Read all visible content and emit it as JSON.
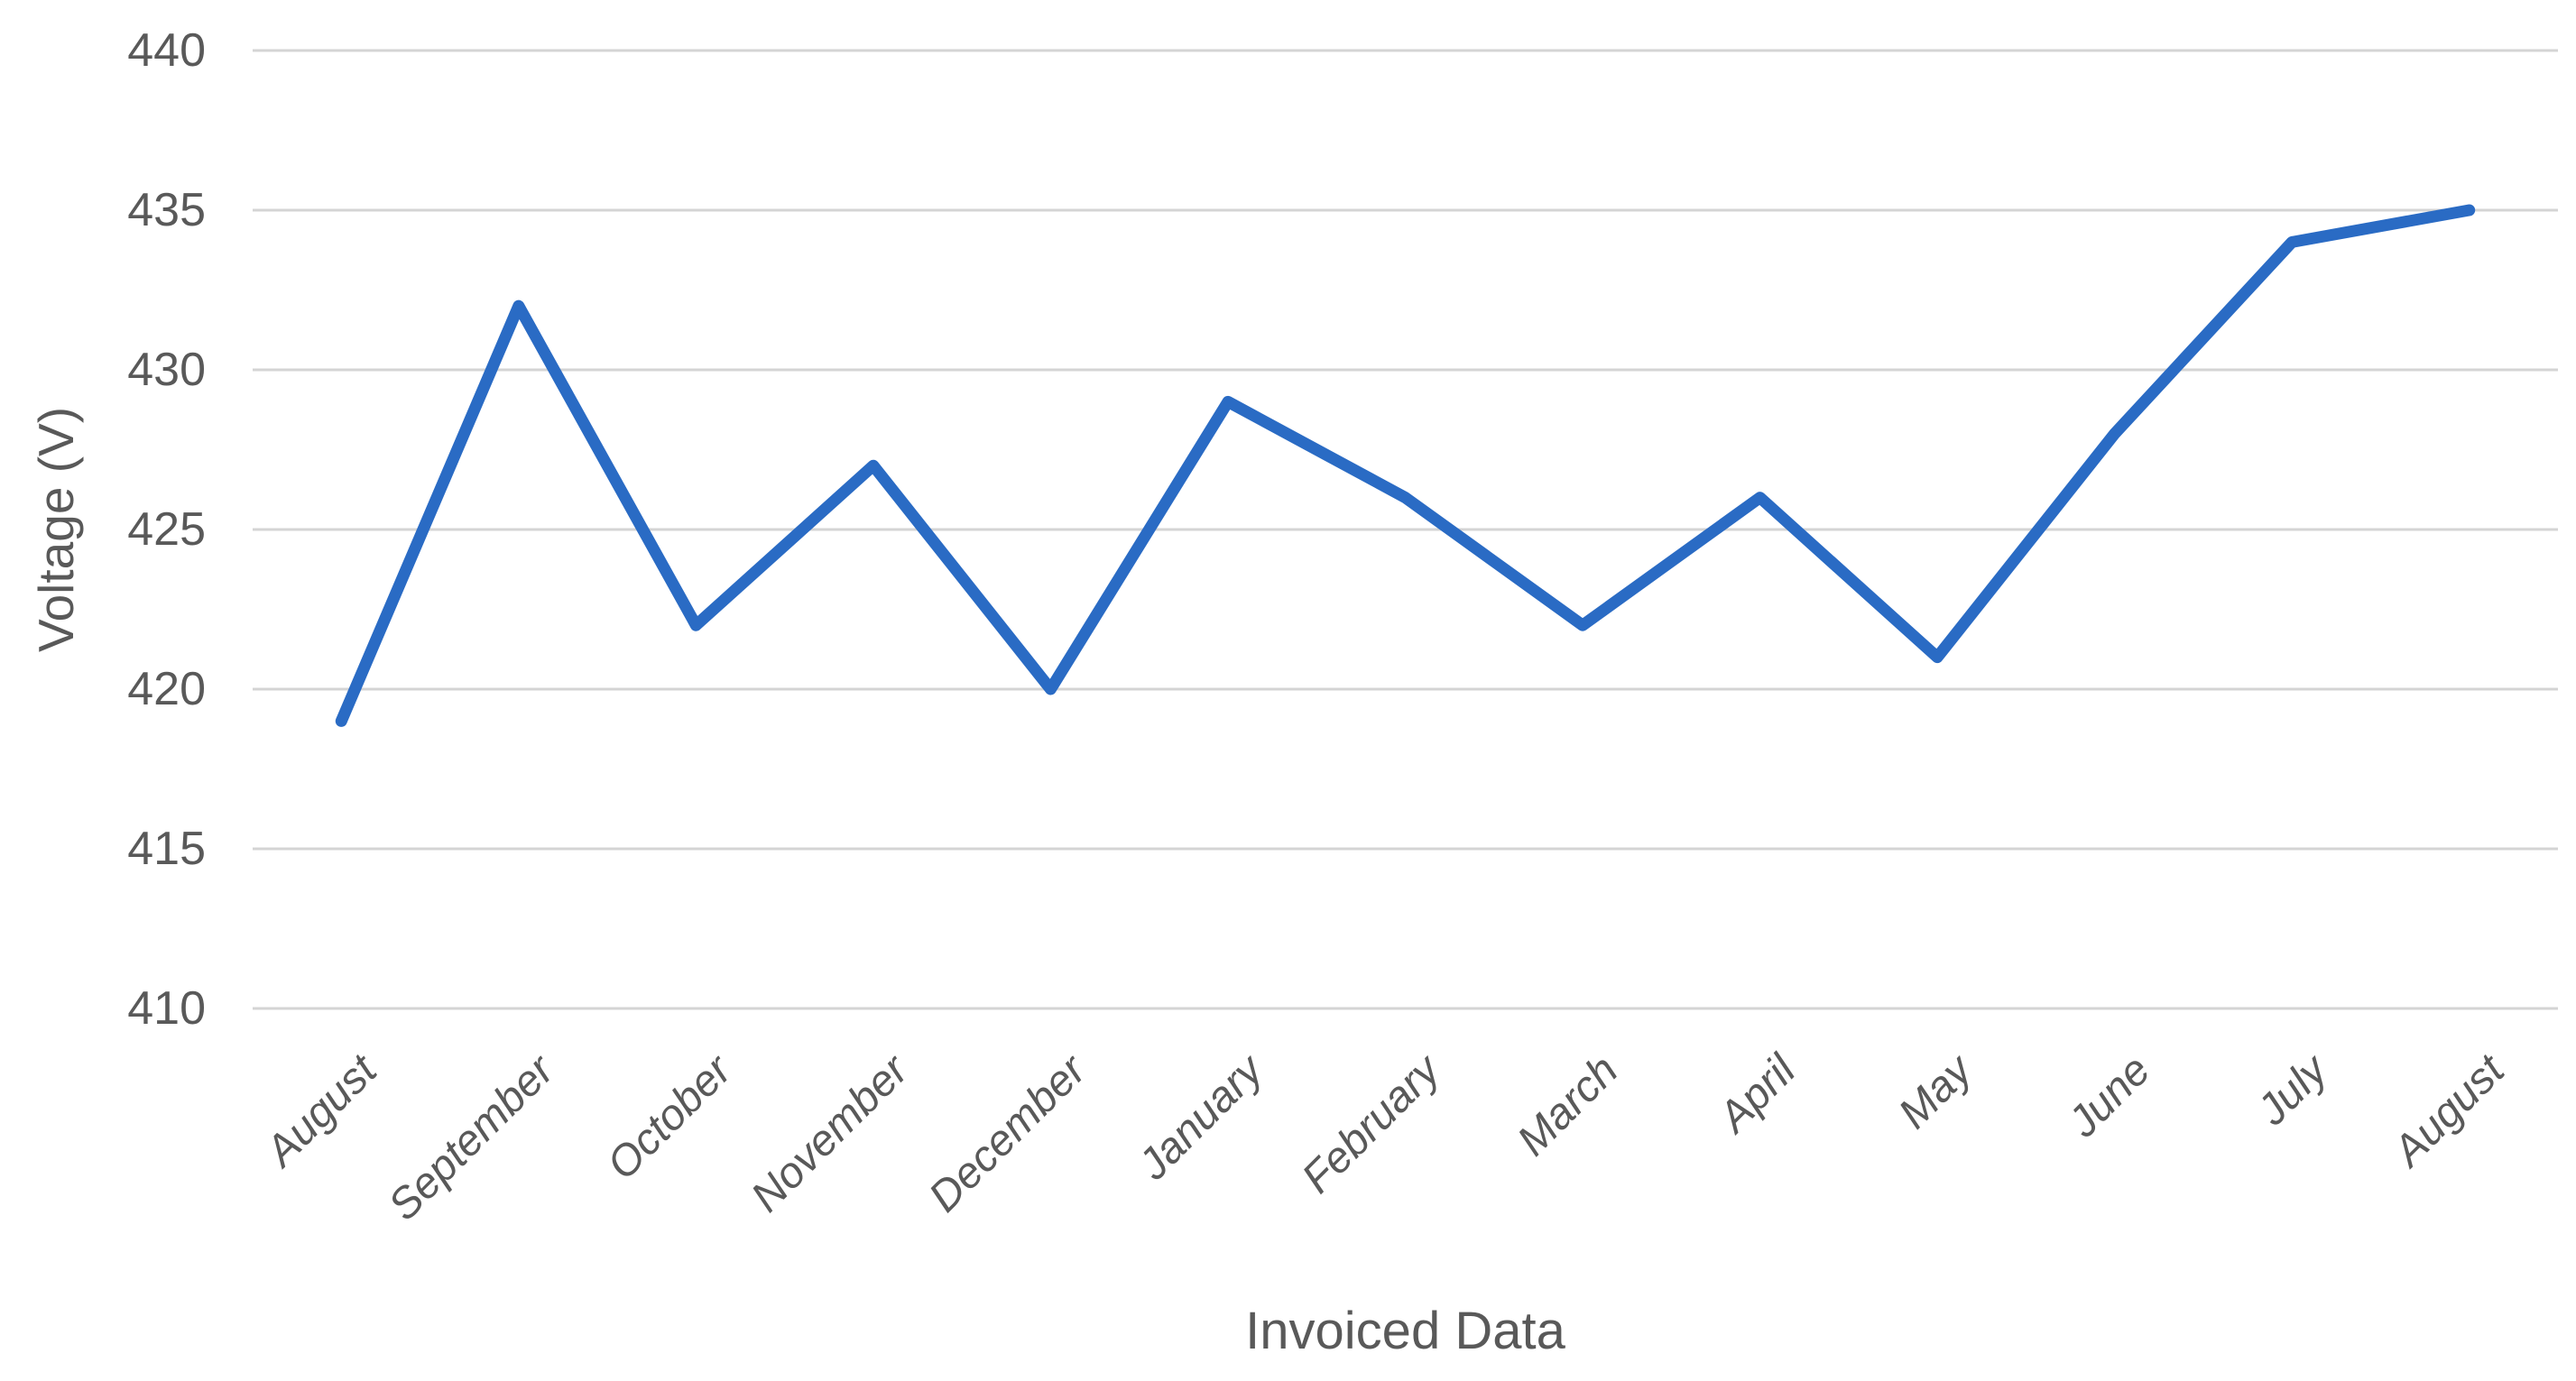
{
  "chart_data": {
    "type": "line",
    "categories": [
      "August",
      "September",
      "October",
      "November",
      "December",
      "January",
      "February",
      "March",
      "April",
      "May",
      "June",
      "July",
      "August"
    ],
    "values": [
      419,
      432,
      422,
      427,
      420,
      429,
      426,
      422,
      426,
      421,
      428,
      434,
      435
    ],
    "title": "",
    "xlabel": "Invoiced Data",
    "ylabel": "Voltage (V)",
    "ylim": [
      410,
      440
    ],
    "yticks": [
      440,
      435,
      430,
      425,
      420,
      415,
      410
    ],
    "grid": "horizontal-major-only",
    "legend": "none",
    "colors": {
      "line": "#2A6BC4",
      "gridline": "#D4D4D4",
      "text": "#595959",
      "background": "#FFFFFF"
    }
  }
}
